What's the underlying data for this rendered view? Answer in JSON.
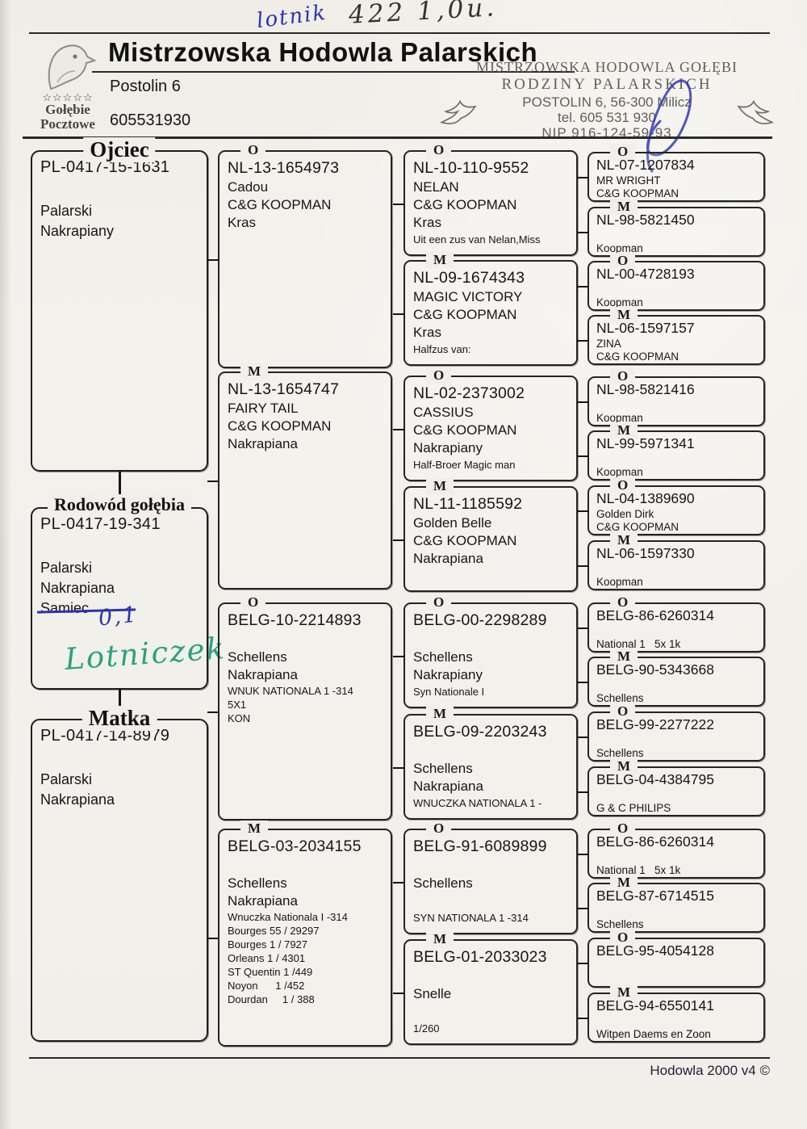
{
  "colors": {
    "pen_blue": "#2c34b0",
    "pen_green": "#2ba183",
    "pencil": "#35332f",
    "stamp": "#605f5a",
    "ink": "#161616"
  },
  "handwriting": {
    "top_left": "lotnik",
    "top_right": "422 1,0u.",
    "sex_count": "0,1",
    "green_note": "Lotniczek"
  },
  "header": {
    "title": "Mistrzowska Hodowla Palarskich",
    "address": "Postolin  6",
    "phone": "605531930",
    "logo": {
      "stars": "☆☆☆☆☆",
      "line1": "Gołębie",
      "line2": "Pocztowe"
    },
    "stamp": {
      "line1": "MISTRZOWSKA HODOWLA GOŁĘBI",
      "line2": "RODZINY PALARSKICH",
      "line3": "POSTOLIN 6, 56-300 Milicz",
      "line4": "tel. 605 531 930",
      "line5": "NIP 916-124-59-93"
    }
  },
  "pedigree": {
    "father": {
      "label": "Ojciec",
      "ring": "PL-0417-15-1631",
      "line1": "Palarski",
      "line2": "Nakrapiany"
    },
    "subject": {
      "label": "Rodowód gołębia",
      "ring": "PL-0417-19-341",
      "line1": "Palarski",
      "line2": "Nakrapiana",
      "struck_text": "Samiec"
    },
    "mother": {
      "label": "Matka",
      "ring": "PL-0417-14-8979",
      "line1": "Palarski",
      "line2": "Nakrapiana"
    },
    "gen2": [
      {
        "sex": "O",
        "ring": "NL-13-1654973",
        "lines": [
          "Cadou",
          "C&G KOOPMAN",
          "Kras"
        ],
        "notes": []
      },
      {
        "sex": "M",
        "ring": "NL-13-1654747",
        "lines": [
          "FAIRY TAIL",
          "C&G KOOPMAN",
          "Nakrapiana"
        ],
        "notes": []
      },
      {
        "sex": "O",
        "ring": "BELG-10-2214893",
        "lines": [
          "",
          "Schellens",
          "Nakrapiana"
        ],
        "notes": [
          "WNUK NATIONALA 1 -314",
          "5X1",
          "KON"
        ]
      },
      {
        "sex": "M",
        "ring": "BELG-03-2034155",
        "lines": [
          "",
          "Schellens",
          "Nakrapiana"
        ],
        "notes": [
          "Wnuczka Nationala I -314",
          "Bourges 55 / 29297",
          "Bourges 1 / 7927",
          "Orleans 1 / 4301",
          "ST Quentin 1 /449",
          "Noyon      1 /452",
          "Dourdan     1 / 388"
        ]
      }
    ],
    "gen3": [
      {
        "sex": "O",
        "ring": "NL-10-110-9552",
        "lines": [
          "NELAN",
          "C&G KOOPMAN",
          "Kras"
        ],
        "notes": [
          "Uit een zus van Nelan,Miss"
        ]
      },
      {
        "sex": "M",
        "ring": "NL-09-1674343",
        "lines": [
          "MAGIC VICTORY",
          "C&G KOOPMAN",
          "Kras"
        ],
        "notes": [
          "Halfzus van:"
        ]
      },
      {
        "sex": "O",
        "ring": "NL-02-2373002",
        "lines": [
          "CASSIUS",
          "C&G KOOPMAN",
          "Nakrapiany"
        ],
        "notes": [
          "Half-Broer Magic man"
        ]
      },
      {
        "sex": "M",
        "ring": "NL-11-1185592",
        "lines": [
          "Golden Belle",
          "C&G KOOPMAN",
          "Nakrapiana"
        ],
        "notes": []
      },
      {
        "sex": "O",
        "ring": "BELG-00-2298289",
        "lines": [
          "",
          "Schellens",
          "Nakrapiany"
        ],
        "notes": [
          "Syn Nationale I"
        ]
      },
      {
        "sex": "M",
        "ring": "BELG-09-2203243",
        "lines": [
          "",
          "Schellens",
          "Nakrapiana"
        ],
        "notes": [
          "WNUCZKA NATIONALA 1 -"
        ]
      },
      {
        "sex": "O",
        "ring": "BELG-91-6089899",
        "lines": [
          "",
          "Schellens",
          ""
        ],
        "notes": [
          "SYN NATIONALA 1 -314"
        ]
      },
      {
        "sex": "M",
        "ring": "BELG-01-2033023",
        "lines": [
          "",
          "Snelle",
          ""
        ],
        "notes": [
          "1/260"
        ]
      }
    ],
    "gen4": [
      {
        "sex": "O",
        "ring": "NL-07-1207834",
        "lines": [
          "MR WRIGHT",
          "C&G KOOPMAN"
        ]
      },
      {
        "sex": "M",
        "ring": "NL-98-5821450",
        "lines": [
          "",
          "Koopman"
        ]
      },
      {
        "sex": "O",
        "ring": "NL-00-4728193",
        "lines": [
          "",
          "Koopman"
        ]
      },
      {
        "sex": "M",
        "ring": "NL-06-1597157",
        "lines": [
          "ZINA",
          "C&G KOOPMAN"
        ]
      },
      {
        "sex": "O",
        "ring": "NL-98-5821416",
        "lines": [
          "",
          "Koopman"
        ]
      },
      {
        "sex": "M",
        "ring": "NL-99-5971341",
        "lines": [
          "",
          "Koopman"
        ]
      },
      {
        "sex": "O",
        "ring": "NL-04-1389690",
        "lines": [
          "Golden Dirk",
          "C&G KOOPMAN"
        ]
      },
      {
        "sex": "M",
        "ring": "NL-06-1597330",
        "lines": [
          "",
          "Koopman"
        ]
      },
      {
        "sex": "O",
        "ring": "BELG-86-6260314",
        "lines": [
          "",
          "National 1   5x 1k"
        ]
      },
      {
        "sex": "M",
        "ring": "BELG-90-5343668",
        "lines": [
          "",
          "Schellens"
        ]
      },
      {
        "sex": "O",
        "ring": "BELG-99-2277222",
        "lines": [
          "",
          "Schellens"
        ]
      },
      {
        "sex": "M",
        "ring": "BELG-04-4384795",
        "lines": [
          "",
          "G & C PHILIPS"
        ]
      },
      {
        "sex": "O",
        "ring": "BELG-86-6260314",
        "lines": [
          "",
          "National 1   5x 1k"
        ]
      },
      {
        "sex": "M",
        "ring": "BELG-87-6714515",
        "lines": [
          "",
          "Schellens"
        ]
      },
      {
        "sex": "O",
        "ring": "BELG-95-4054128",
        "lines": [
          "",
          ""
        ]
      },
      {
        "sex": "M",
        "ring": "BELG-94-6550141",
        "lines": [
          "",
          "Witpen Daems en Zoon"
        ]
      }
    ]
  },
  "footer": {
    "text": "Hodowla 2000 v4 ©"
  }
}
